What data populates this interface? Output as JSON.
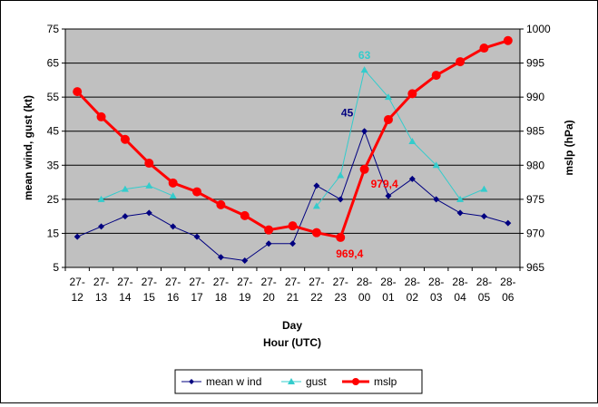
{
  "chart_data": {
    "type": "line",
    "categories": [
      "27-12",
      "27-13",
      "27-14",
      "27-15",
      "27-16",
      "27-17",
      "27-18",
      "27-19",
      "27-20",
      "27-21",
      "27-22",
      "27-23",
      "28-00",
      "28-01",
      "28-02",
      "28-03",
      "28-04",
      "28-05",
      "28-06"
    ],
    "tick_lines": [
      [
        "27-",
        "12"
      ],
      [
        "27-",
        "13"
      ],
      [
        "27-",
        "14"
      ],
      [
        "27-",
        "15"
      ],
      [
        "27-",
        "16"
      ],
      [
        "27-",
        "17"
      ],
      [
        "27-",
        "18"
      ],
      [
        "27-",
        "19"
      ],
      [
        "27-",
        "20"
      ],
      [
        "27-",
        "21"
      ],
      [
        "27-",
        "22"
      ],
      [
        "27-",
        "23"
      ],
      [
        "28-",
        "00"
      ],
      [
        "28-",
        "01"
      ],
      [
        "28-",
        "02"
      ],
      [
        "28-",
        "03"
      ],
      [
        "28-",
        "04"
      ],
      [
        "28-",
        "05"
      ],
      [
        "28-",
        "06"
      ]
    ],
    "xlabel": [
      "Day",
      "Hour (UTC)"
    ],
    "ylabel": "mean wind, gust (kt)",
    "y2label": "mslp (hPa)",
    "ylim": [
      5,
      75
    ],
    "y_ticks": [
      5,
      15,
      25,
      35,
      45,
      55,
      65,
      75
    ],
    "y2lim": [
      965,
      1000
    ],
    "y2_ticks": [
      965,
      970,
      975,
      980,
      985,
      990,
      995,
      1000
    ],
    "grid": "horizontal",
    "legend_position": "bottom",
    "series": [
      {
        "name": "mean w ind",
        "axis": "left",
        "color": "#000080",
        "marker": "diamond",
        "values": [
          14,
          17,
          20,
          21,
          17,
          14,
          8,
          7,
          12,
          12,
          29,
          25,
          45,
          26,
          31,
          25,
          21,
          20,
          18
        ]
      },
      {
        "name": "gust",
        "axis": "left",
        "color": "#33CCCC",
        "marker": "triangle",
        "values": [
          null,
          25,
          28,
          29,
          26,
          null,
          null,
          null,
          null,
          null,
          23,
          32,
          63,
          55,
          42,
          35,
          25,
          28,
          null
        ]
      },
      {
        "name": "mslp",
        "axis": "right",
        "color": "#FF0000",
        "marker": "circle",
        "values": [
          990.8,
          987.1,
          983.8,
          980.3,
          977.4,
          976.1,
          974.2,
          972.6,
          970.5,
          971.1,
          970.1,
          969.4,
          979.4,
          986.7,
          990.5,
          993.2,
          995.2,
          997.2,
          998.3
        ]
      }
    ],
    "annotations": [
      {
        "text": "63",
        "series": 1,
        "index": 12,
        "color": "#33CCCC",
        "pos": "above"
      },
      {
        "text": "45",
        "series": 0,
        "index": 12,
        "color": "#000080",
        "pos": "above-left"
      },
      {
        "text": "979,4",
        "series": 2,
        "index": 12,
        "color": "#FF0000",
        "pos": "right"
      },
      {
        "text": "969,4",
        "series": 2,
        "index": 11,
        "color": "#FF0000",
        "pos": "below-right"
      }
    ],
    "plot_background": "#C0C0C0"
  }
}
